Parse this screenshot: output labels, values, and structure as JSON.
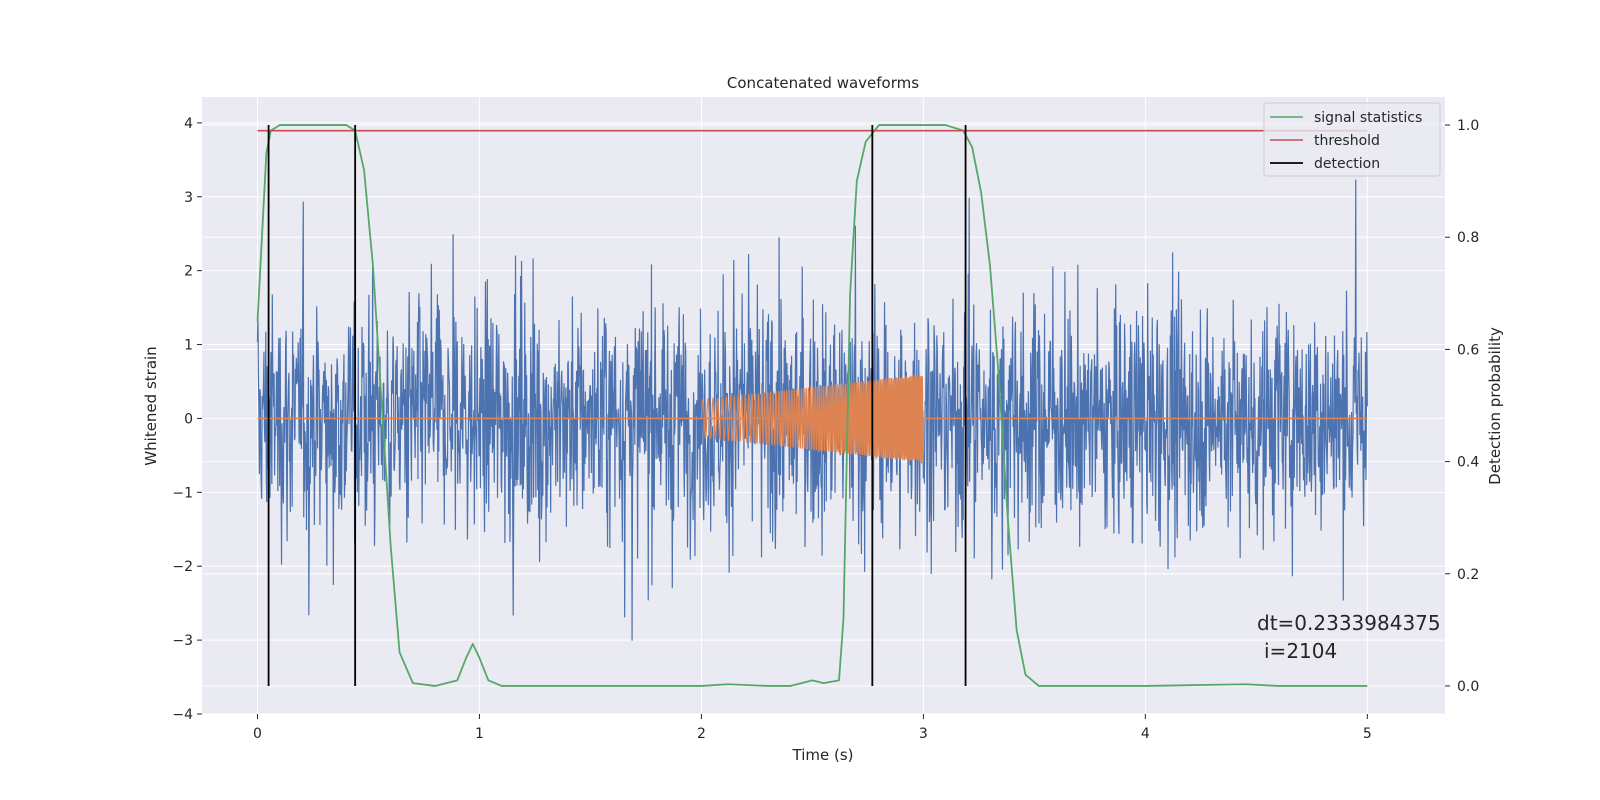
{
  "chart_data": {
    "type": "line",
    "title": "Concatenated waveforms",
    "xlabel": "Time (s)",
    "ylabel": "Whitened strain",
    "y2label": "Detection probability",
    "xlim": [
      -0.25,
      5.35
    ],
    "ylim": [
      -4.0,
      4.35
    ],
    "y2lim": [
      -0.05,
      1.05
    ],
    "xticks": [
      0,
      1,
      2,
      3,
      4,
      5
    ],
    "yticks": [
      -4,
      -3,
      -2,
      -1,
      0,
      1,
      2,
      3,
      4
    ],
    "y2ticks": [
      0.0,
      0.2,
      0.4,
      0.6,
      0.8,
      1.0
    ],
    "ytick_labels": [
      "−4",
      "−3",
      "−2",
      "−1",
      "0",
      "1",
      "2",
      "3",
      "4"
    ],
    "y2tick_labels": [
      "0.0",
      "0.2",
      "0.4",
      "0.6",
      "0.8",
      "1.0"
    ],
    "grid": true,
    "legend_position": "top-right",
    "colors": {
      "noise": "#4c72b0",
      "waveform": "#dd8452",
      "signal_statistics": "#55a868",
      "threshold": "#c44e52",
      "detection": "#000000",
      "background": "#eaeaf2",
      "grid": "#ffffff"
    },
    "noise": {
      "x_range": [
        0,
        5
      ],
      "envelope": [
        -3.6,
        3.6
      ]
    },
    "waveform": {
      "x_range": [
        2.0,
        3.0
      ],
      "amplitude_start": 0.25,
      "amplitude_end": 0.6
    },
    "series": [
      {
        "name": "signal statistics",
        "axis": "right",
        "x": [
          0.0,
          0.02,
          0.04,
          0.06,
          0.1,
          0.2,
          0.4,
          0.44,
          0.48,
          0.52,
          0.56,
          0.6,
          0.64,
          0.7,
          0.8,
          0.9,
          0.94,
          0.97,
          1.0,
          1.04,
          1.1,
          1.3,
          1.6,
          2.0,
          2.12,
          2.3,
          2.4,
          2.5,
          2.55,
          2.62,
          2.64,
          2.67,
          2.7,
          2.74,
          2.8,
          2.9,
          3.1,
          3.18,
          3.22,
          3.26,
          3.3,
          3.34,
          3.38,
          3.42,
          3.46,
          3.52,
          3.7,
          4.0,
          4.45,
          4.6,
          5.0
        ],
        "y": [
          0.65,
          0.8,
          0.95,
          0.99,
          1.0,
          1.0,
          1.0,
          0.99,
          0.92,
          0.75,
          0.5,
          0.25,
          0.06,
          0.005,
          0.0,
          0.01,
          0.05,
          0.075,
          0.05,
          0.01,
          0.0,
          0.0,
          0.0,
          0.0,
          0.003,
          0.0,
          0.0,
          0.01,
          0.005,
          0.01,
          0.12,
          0.7,
          0.9,
          0.97,
          1.0,
          1.0,
          1.0,
          0.99,
          0.96,
          0.88,
          0.75,
          0.55,
          0.3,
          0.1,
          0.02,
          0.0,
          0.0,
          0.0,
          0.003,
          0.0,
          0.0
        ]
      },
      {
        "name": "threshold",
        "axis": "right",
        "x": [
          0.0,
          5.0
        ],
        "y": [
          0.99,
          0.99
        ]
      },
      {
        "name": "detection",
        "axis": "right",
        "x": [
          0.05,
          0.44,
          2.77,
          3.19
        ],
        "y_range": [
          0.0,
          1.0
        ]
      }
    ],
    "annotations": [
      "dt=0.2333984375",
      "i=2104"
    ]
  }
}
